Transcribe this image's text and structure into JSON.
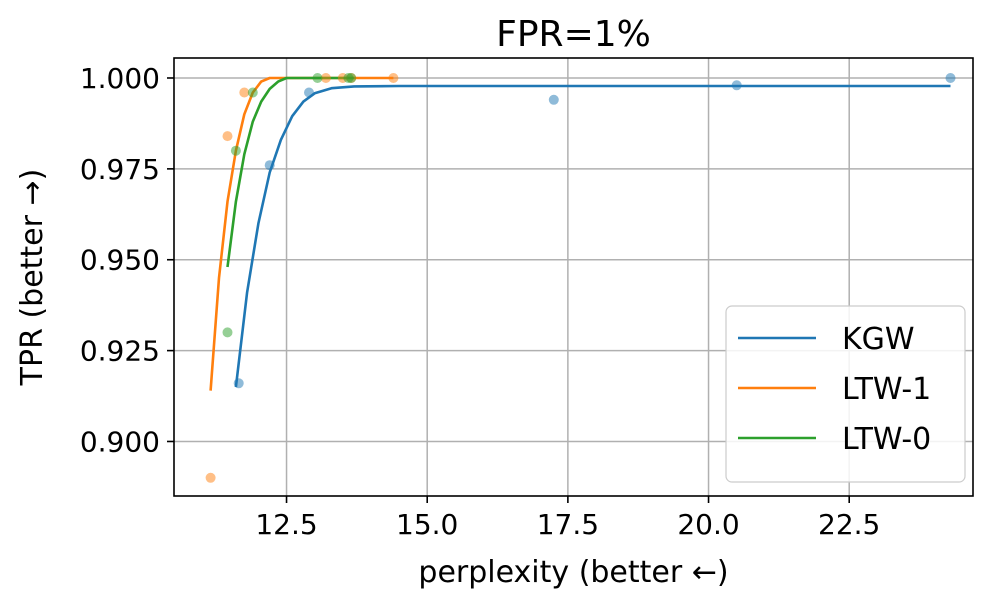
{
  "chart_data": {
    "type": "scatter",
    "title": "FPR=1%",
    "xlabel": "perplexity (better ←)",
    "ylabel": "TPR (better →)",
    "xlim": [
      10.5,
      24.7
    ],
    "ylim": [
      0.885,
      1.0055
    ],
    "x_ticks": [
      12.5,
      15.0,
      17.5,
      20.0,
      22.5
    ],
    "x_tick_labels": [
      "12.5",
      "15.0",
      "17.5",
      "20.0",
      "22.5"
    ],
    "y_ticks": [
      0.9,
      0.925,
      0.95,
      0.975,
      1.0
    ],
    "y_tick_labels": [
      "0.900",
      "0.925",
      "0.950",
      "0.975",
      "1.000"
    ],
    "grid": true,
    "legend_position": "lower-right",
    "series": [
      {
        "name": "KGW",
        "color": "#1f77b4",
        "points": [
          [
            11.65,
            0.916
          ],
          [
            12.2,
            0.976
          ],
          [
            12.9,
            0.996
          ],
          [
            17.25,
            0.994
          ],
          [
            20.5,
            0.998
          ],
          [
            24.3,
            1.0
          ]
        ],
        "curve": [
          [
            11.6,
            0.915
          ],
          [
            11.8,
            0.941
          ],
          [
            12.0,
            0.96
          ],
          [
            12.2,
            0.974
          ],
          [
            12.4,
            0.983
          ],
          [
            12.6,
            0.9895
          ],
          [
            12.8,
            0.9935
          ],
          [
            13.0,
            0.9958
          ],
          [
            13.3,
            0.9972
          ],
          [
            13.7,
            0.9977
          ],
          [
            14.5,
            0.9978
          ],
          [
            17.0,
            0.9978
          ],
          [
            20.0,
            0.9978
          ],
          [
            24.3,
            0.9978
          ]
        ]
      },
      {
        "name": "LTW-1",
        "color": "#ff7f0e",
        "points": [
          [
            11.15,
            0.89
          ],
          [
            11.45,
            0.984
          ],
          [
            11.75,
            0.996
          ],
          [
            13.2,
            1.0
          ],
          [
            13.5,
            1.0
          ],
          [
            13.65,
            1.0
          ],
          [
            14.4,
            1.0
          ]
        ],
        "curve": [
          [
            11.15,
            0.914
          ],
          [
            11.3,
            0.945
          ],
          [
            11.45,
            0.966
          ],
          [
            11.6,
            0.98
          ],
          [
            11.75,
            0.99
          ],
          [
            11.9,
            0.996
          ],
          [
            12.05,
            0.999
          ],
          [
            12.2,
            1.0
          ],
          [
            14.4,
            1.0
          ]
        ]
      },
      {
        "name": "LTW-0",
        "color": "#2ca02c",
        "points": [
          [
            11.45,
            0.93
          ],
          [
            11.6,
            0.98
          ],
          [
            11.9,
            0.996
          ],
          [
            13.05,
            1.0
          ],
          [
            13.6,
            1.0
          ],
          [
            13.65,
            1.0
          ]
        ],
        "curve": [
          [
            11.45,
            0.948
          ],
          [
            11.6,
            0.966
          ],
          [
            11.75,
            0.979
          ],
          [
            11.9,
            0.988
          ],
          [
            12.05,
            0.9935
          ],
          [
            12.2,
            0.997
          ],
          [
            12.35,
            0.999
          ],
          [
            12.5,
            1.0
          ],
          [
            13.7,
            1.0
          ]
        ]
      }
    ]
  }
}
